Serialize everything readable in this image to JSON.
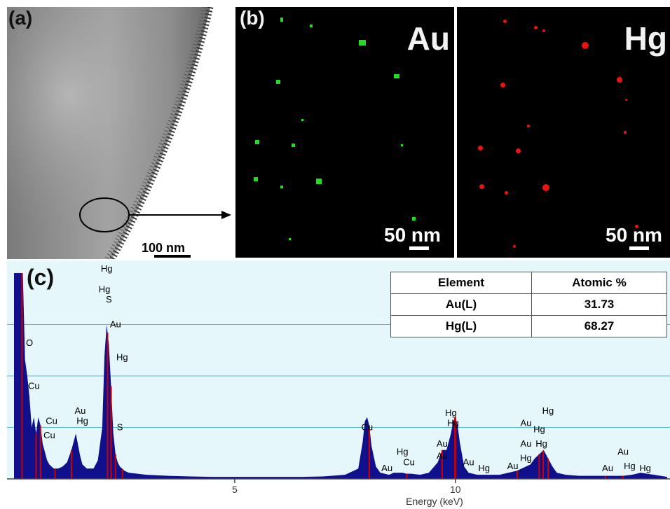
{
  "panels": {
    "a": {
      "label": "(a)",
      "scale": "100 nm"
    },
    "b": {
      "label": "(b)",
      "au_label": "Au",
      "hg_label": "Hg",
      "scale_au": "50 nm",
      "scale_hg": "50 nm",
      "au_color": "#22dd22",
      "hg_color": "#ee1111"
    },
    "c": {
      "label": "(c)"
    }
  },
  "table": {
    "headers": [
      "Element",
      "Atomic %"
    ],
    "rows": [
      {
        "element": "Au(L)",
        "atomic": "31.73"
      },
      {
        "element": "Hg(L)",
        "atomic": "68.27"
      }
    ]
  },
  "chart_data": {
    "type": "area",
    "xlabel": "Energy (keV)",
    "xticks": [
      5,
      10
    ],
    "xlim": [
      0,
      14.8
    ],
    "ylim": [
      0,
      100
    ],
    "fill_color": "#10108c",
    "line_color": "#cc0000",
    "background": "#e6f7fb",
    "grid": true,
    "spectrum": {
      "x": [
        0.0,
        0.05,
        0.1,
        0.15,
        0.2,
        0.25,
        0.3,
        0.35,
        0.4,
        0.45,
        0.5,
        0.55,
        0.6,
        0.65,
        0.7,
        0.75,
        0.8,
        0.85,
        0.9,
        0.95,
        1.0,
        1.1,
        1.2,
        1.3,
        1.4,
        1.5,
        1.55,
        1.6,
        1.65,
        1.7,
        1.8,
        1.9,
        2.0,
        2.05,
        2.1,
        2.15,
        2.2,
        2.25,
        2.3,
        2.35,
        2.4,
        2.5,
        2.6,
        2.8,
        3.0,
        3.5,
        4.0,
        4.5,
        5.0,
        5.5,
        6.0,
        6.5,
        7.0,
        7.5,
        7.8,
        7.9,
        7.95,
        8.0,
        8.05,
        8.1,
        8.2,
        8.3,
        8.5,
        8.6,
        8.8,
        8.9,
        9.0,
        9.2,
        9.4,
        9.6,
        9.7,
        9.8,
        9.9,
        9.95,
        10.0,
        10.05,
        10.1,
        10.2,
        10.3,
        10.5,
        10.8,
        11.0,
        11.2,
        11.4,
        11.6,
        11.7,
        11.8,
        11.9,
        12.0,
        12.1,
        12.2,
        12.3,
        12.5,
        12.8,
        13.2,
        13.5,
        13.8,
        14.0,
        14.2,
        14.5,
        14.8
      ],
      "y": [
        100,
        100,
        100,
        100,
        100,
        58,
        50,
        40,
        25,
        30,
        22,
        30,
        26,
        17,
        13,
        9,
        7,
        6,
        5,
        5,
        5,
        6,
        8,
        14,
        22,
        11,
        7,
        6,
        5,
        5,
        5,
        9,
        25,
        60,
        75,
        65,
        45,
        22,
        12,
        8,
        6,
        4,
        3,
        2.5,
        2,
        1.5,
        1.2,
        1,
        1,
        1,
        1,
        1,
        1.2,
        2,
        5,
        18,
        28,
        30,
        26,
        16,
        6,
        3,
        2,
        3,
        3,
        2.5,
        2.5,
        2,
        3,
        8,
        14,
        14,
        22,
        28,
        30,
        26,
        18,
        6,
        3,
        2,
        2,
        2,
        3,
        4,
        6,
        7,
        10,
        12,
        14,
        10,
        6,
        3,
        2,
        1.5,
        1.5,
        1.5,
        1.5,
        2,
        3,
        2,
        1
      ]
    },
    "markers": [
      0.18,
      0.5,
      0.6,
      0.93,
      1.3,
      2.12,
      2.2,
      2.3,
      2.46,
      8.05,
      8.9,
      9.7,
      9.99,
      10.0,
      11.4,
      11.9,
      11.99,
      12.1,
      13.4,
      13.8
    ],
    "peak_labels": [
      {
        "text": "Hg",
        "x": 2.1,
        "y": 100
      },
      {
        "text": "Hg",
        "x": 2.05,
        "y": 90
      },
      {
        "text": "S",
        "x": 2.15,
        "y": 85
      },
      {
        "text": "Au",
        "x": 2.3,
        "y": 73
      },
      {
        "text": "O",
        "x": 0.35,
        "y": 64
      },
      {
        "text": "Hg",
        "x": 2.45,
        "y": 57
      },
      {
        "text": "Cu",
        "x": 0.45,
        "y": 43
      },
      {
        "text": "Au",
        "x": 1.5,
        "y": 31
      },
      {
        "text": "Cu",
        "x": 0.85,
        "y": 26
      },
      {
        "text": "Hg",
        "x": 1.55,
        "y": 26
      },
      {
        "text": "S",
        "x": 2.4,
        "y": 23
      },
      {
        "text": "Cu",
        "x": 0.8,
        "y": 19
      },
      {
        "text": "Cu",
        "x": 8.0,
        "y": 23
      },
      {
        "text": "Hg",
        "x": 8.8,
        "y": 11
      },
      {
        "text": "Cu",
        "x": 8.95,
        "y": 6
      },
      {
        "text": "Au",
        "x": 8.45,
        "y": 3
      },
      {
        "text": "Hg",
        "x": 9.9,
        "y": 30
      },
      {
        "text": "Hg",
        "x": 9.95,
        "y": 25
      },
      {
        "text": "Au",
        "x": 9.7,
        "y": 15
      },
      {
        "text": "Au",
        "x": 9.7,
        "y": 9
      },
      {
        "text": "Au",
        "x": 10.3,
        "y": 6
      },
      {
        "text": "Hg",
        "x": 10.65,
        "y": 3
      },
      {
        "text": "Hg",
        "x": 12.1,
        "y": 31
      },
      {
        "text": "Au",
        "x": 11.6,
        "y": 25
      },
      {
        "text": "Hg",
        "x": 11.9,
        "y": 22
      },
      {
        "text": "Au",
        "x": 11.6,
        "y": 15
      },
      {
        "text": "Hg",
        "x": 11.95,
        "y": 15
      },
      {
        "text": "Hg",
        "x": 11.6,
        "y": 8
      },
      {
        "text": "Au",
        "x": 11.3,
        "y": 4
      },
      {
        "text": "Au",
        "x": 13.8,
        "y": 11
      },
      {
        "text": "Au",
        "x": 13.45,
        "y": 3
      },
      {
        "text": "Hg",
        "x": 13.95,
        "y": 4
      },
      {
        "text": "Hg",
        "x": 14.3,
        "y": 3
      }
    ]
  }
}
